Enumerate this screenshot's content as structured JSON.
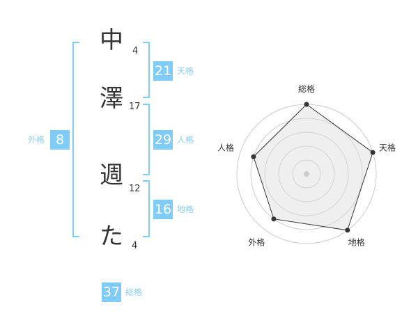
{
  "name": {
    "chars": [
      {
        "char": "中",
        "strokes": "4"
      },
      {
        "char": "澤",
        "strokes": "17"
      },
      {
        "char": "週",
        "strokes": "12"
      },
      {
        "char": "た",
        "strokes": "4"
      }
    ]
  },
  "fortunes": {
    "tenkaku": {
      "label": "天格",
      "value": "21"
    },
    "jinkaku": {
      "label": "人格",
      "value": "29"
    },
    "chikaku": {
      "label": "地格",
      "value": "16"
    },
    "gaikaku": {
      "label": "外格",
      "value": "8"
    },
    "soukaku": {
      "label": "総格",
      "value": "37"
    }
  },
  "accent_color": "#80ccf8",
  "chart_data": {
    "type": "radar",
    "axes": [
      "総格",
      "天格",
      "地格",
      "外格",
      "人格"
    ],
    "values": [
      5,
      5,
      5,
      4,
      4
    ],
    "max": 5,
    "rings": 5
  }
}
